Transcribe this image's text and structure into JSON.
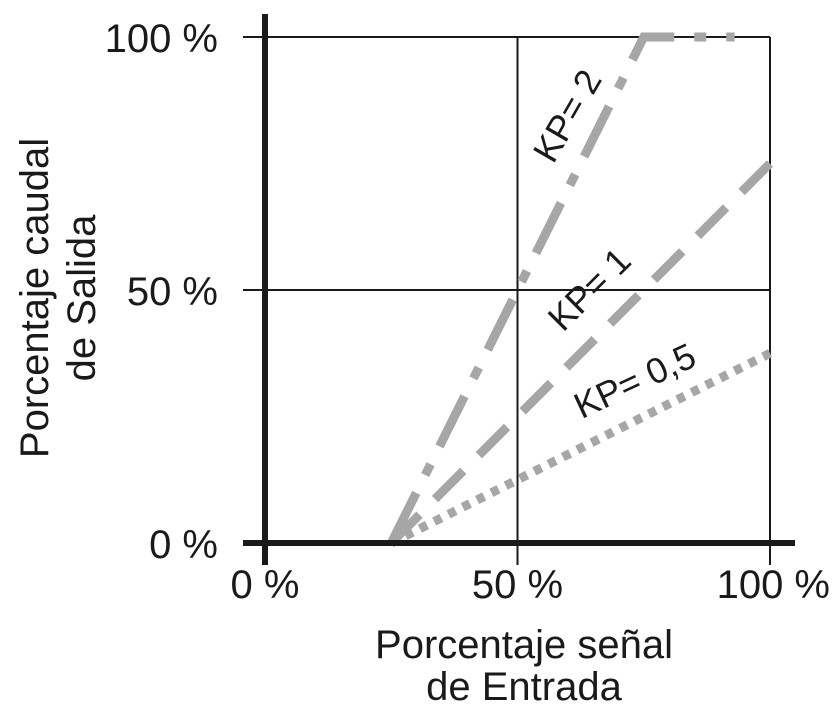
{
  "chart_data": {
    "type": "line",
    "xlabel": [
      "Porcentaje señal",
      "de Entrada"
    ],
    "ylabel": [
      "Porcentaje caudal",
      "de Salida"
    ],
    "xlim": [
      0,
      100
    ],
    "ylim": [
      0,
      100
    ],
    "xticks": [
      "0 %",
      "50 %",
      "100 %"
    ],
    "yticks": [
      "0 %",
      "50 %",
      "100 %"
    ],
    "grid": true,
    "series": [
      {
        "name": "KP= 2",
        "color": "#a6a6a6",
        "style": "dash-dot",
        "x": [
          25,
          75,
          93
        ],
        "y": [
          0,
          100,
          100
        ]
      },
      {
        "name": "KP= 1",
        "color": "#a6a6a6",
        "style": "dashed",
        "x": [
          25,
          100
        ],
        "y": [
          0,
          75
        ]
      },
      {
        "name": "KP= 0,5",
        "color": "#a6a6a6",
        "style": "dotted",
        "x": [
          25,
          100
        ],
        "y": [
          0,
          37.5
        ]
      }
    ]
  }
}
